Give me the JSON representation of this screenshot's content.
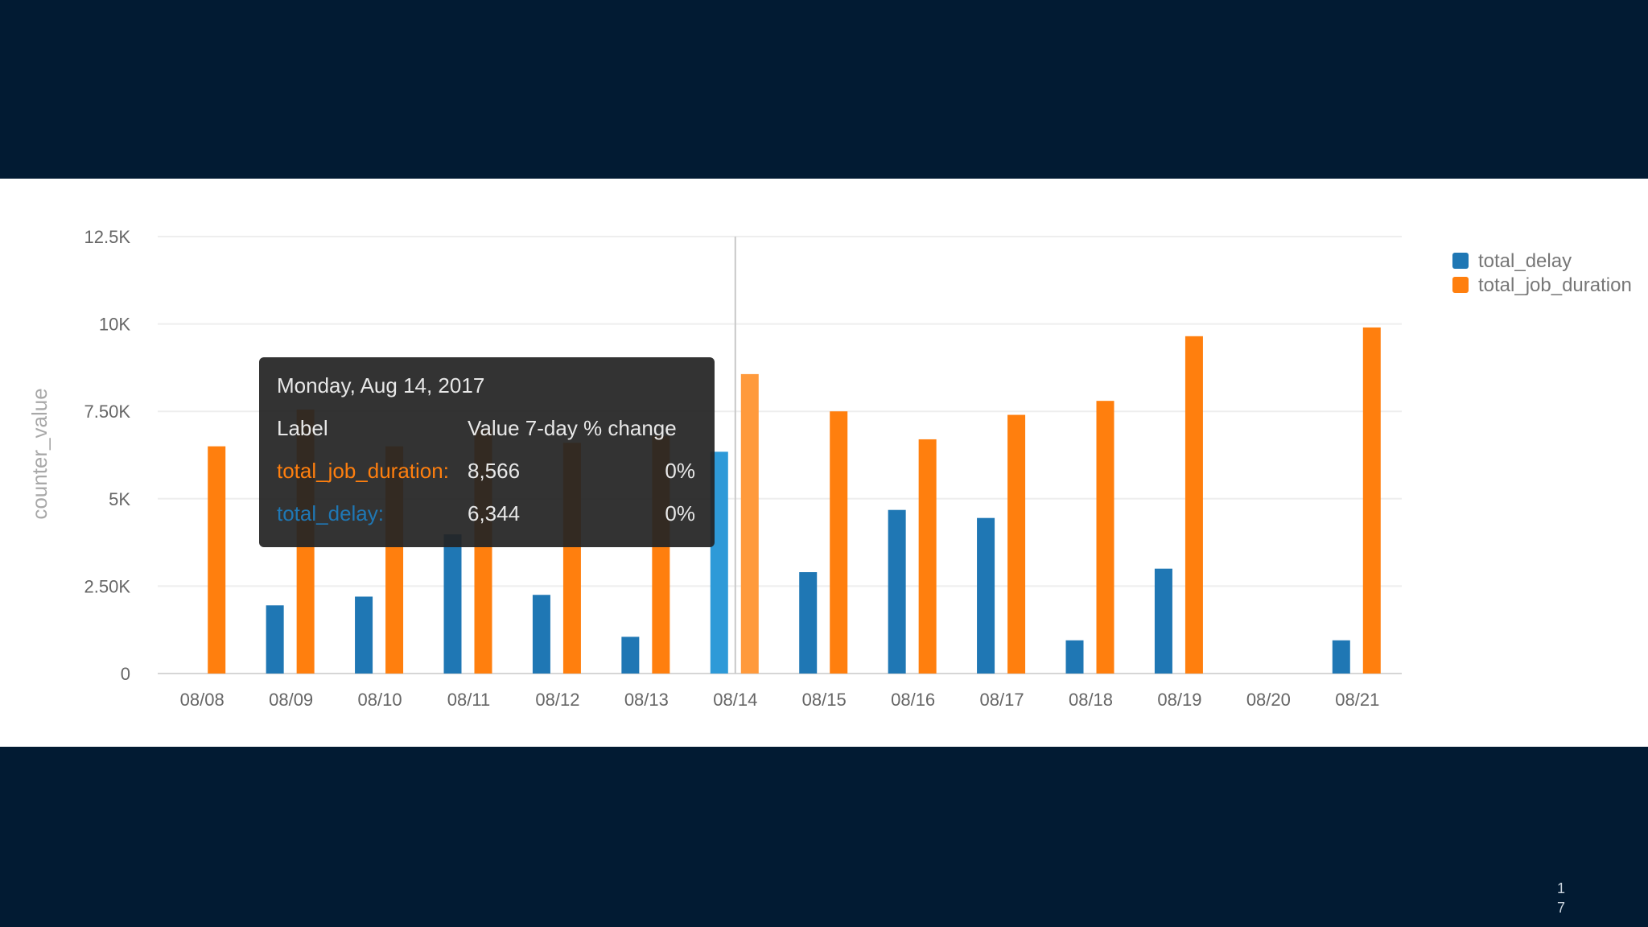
{
  "chart_data": {
    "type": "bar",
    "title": "",
    "xlabel": "",
    "ylabel": "counter_value",
    "ylim": [
      0,
      12500
    ],
    "yticks": [
      0,
      2500,
      5000,
      7500,
      10000,
      12500
    ],
    "ytick_labels": [
      "0",
      "2.50K",
      "5K",
      "7.50K",
      "10K",
      "12.5K"
    ],
    "grid": true,
    "legend_position": "top-right",
    "categories": [
      "08/08",
      "08/09",
      "08/10",
      "08/11",
      "08/12",
      "08/13",
      "08/14",
      "08/15",
      "08/16",
      "08/17",
      "08/18",
      "08/19",
      "08/20",
      "08/21"
    ],
    "series": [
      {
        "name": "total_delay",
        "color": "#1f77b4",
        "values": [
          null,
          1950,
          2200,
          3980,
          2250,
          1050,
          6344,
          2900,
          4680,
          4450,
          950,
          3000,
          null,
          950
        ]
      },
      {
        "name": "total_job_duration",
        "color": "#ff7f0e",
        "values": [
          6500,
          7550,
          6500,
          7000,
          6600,
          6800,
          8566,
          7500,
          6700,
          7400,
          7800,
          9650,
          null,
          9900
        ]
      }
    ],
    "highlighted_category": "08/14",
    "tooltip": {
      "title": "Monday, Aug 14, 2017",
      "header_label": "Label",
      "header_value": "Value 7-day % change",
      "rows": [
        {
          "label": "total_job_duration:",
          "value": "8,566",
          "change": "0%",
          "color": "#ff7f0e"
        },
        {
          "label": "total_delay:",
          "value": "6,344",
          "change": "0%",
          "color": "#1f77b4"
        }
      ]
    }
  },
  "slide": {
    "page_number_line1": "1",
    "page_number_line2": "7"
  }
}
